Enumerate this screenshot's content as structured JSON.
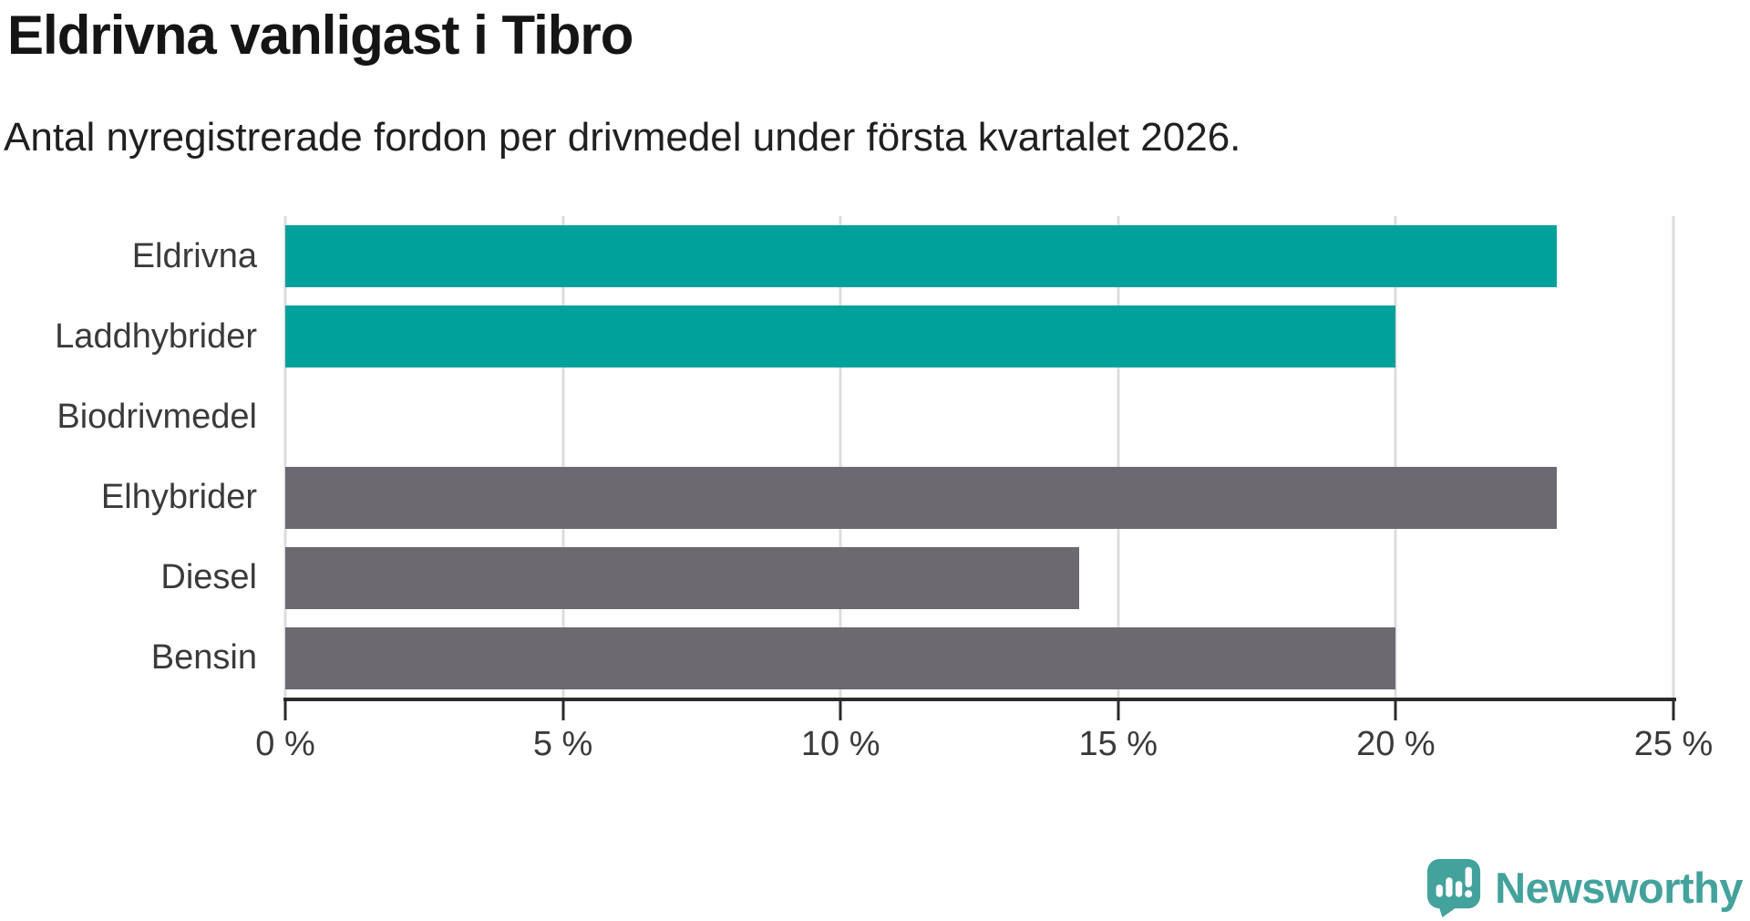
{
  "header": {
    "title": "Eldrivna vanligast i Tibro",
    "subtitle": "Antal nyregistrerade fordon per drivmedel under första kvartalet 2026."
  },
  "chart_data": {
    "type": "bar",
    "orientation": "horizontal",
    "title": "Eldrivna vanligast i Tibro",
    "subtitle": "Antal nyregistrerade fordon per drivmedel under första kvartalet 2026.",
    "categories": [
      "Eldrivna",
      "Laddhybrider",
      "Biodrivmedel",
      "Elhybrider",
      "Diesel",
      "Bensin"
    ],
    "values": [
      22.9,
      20,
      0,
      22.9,
      14.3,
      20
    ],
    "unit": "%",
    "xlim": [
      0,
      25
    ],
    "xticks": [
      0,
      5,
      10,
      15,
      20,
      25
    ],
    "xtick_labels": [
      "0 %",
      "5 %",
      "10 %",
      "15 %",
      "20 %",
      "25 %"
    ],
    "bar_colors": [
      "#00a19a",
      "#00a19a",
      "#00a19a",
      "#6d6970",
      "#6d6970",
      "#6d6970"
    ],
    "grid": true,
    "legend": false,
    "xlabel": "",
    "ylabel": ""
  },
  "colors": {
    "accent_teal": "#00a19a",
    "neutral_gray": "#6d6970",
    "brand_teal": "#43a29c"
  },
  "footer": {
    "brand": "Newsworthy"
  }
}
